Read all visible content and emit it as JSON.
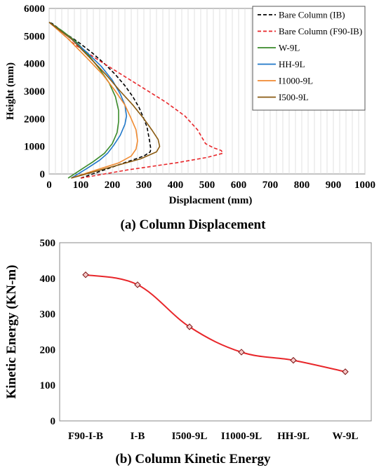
{
  "chart_data": [
    {
      "type": "line",
      "xlabel": "Displacment (mm)",
      "ylabel": "Height (mm)",
      "caption": "(a) Column Displacement",
      "xlim": [
        0,
        1000
      ],
      "ylim": [
        0,
        6000
      ],
      "xticks": [
        0,
        100,
        200,
        300,
        400,
        500,
        600,
        700,
        800,
        900,
        1000
      ],
      "yticks": [
        0,
        1000,
        2000,
        3000,
        4000,
        5000,
        6000
      ],
      "grid": "vertical",
      "legend_position": "top-right",
      "series": [
        {
          "name": "Bare Column (IB)",
          "color": "#000000",
          "dash": "dashed",
          "x": [
            100,
            150,
            200,
            250,
            300,
            320,
            322,
            318,
            310,
            300,
            285,
            265,
            240,
            210,
            175,
            135,
            90,
            50,
            10,
            0
          ],
          "y": [
            -150,
            50,
            250,
            450,
            650,
            800,
            900,
            1200,
            1700,
            2000,
            2400,
            2800,
            3200,
            3600,
            4000,
            4400,
            4800,
            5100,
            5450,
            5500
          ]
        },
        {
          "name": "Bare Column (F90-IB)",
          "color": "#e8262a",
          "dash": "dashed",
          "x": [
            100,
            250,
            400,
            500,
            550,
            545,
            520,
            495,
            485,
            470,
            430,
            370,
            300,
            230,
            160,
            80,
            30,
            0
          ],
          "y": [
            -150,
            150,
            400,
            600,
            750,
            850,
            950,
            1100,
            1300,
            1600,
            2100,
            2600,
            3100,
            3600,
            4100,
            4700,
            5200,
            5500
          ]
        },
        {
          "name": "W-9L",
          "color": "#3a8a2a",
          "dash": "solid",
          "x": [
            60,
            100,
            140,
            175,
            200,
            215,
            220,
            220,
            210,
            190,
            160,
            125,
            85,
            40,
            0
          ],
          "y": [
            -150,
            150,
            450,
            750,
            1100,
            1500,
            1900,
            2300,
            2800,
            3300,
            3800,
            4300,
            4800,
            5200,
            5500
          ]
        },
        {
          "name": "HH-9L",
          "color": "#1f77c8",
          "dash": "solid",
          "x": [
            70,
            120,
            160,
            185,
            205,
            225,
            240,
            245,
            240,
            225,
            200,
            165,
            120,
            70,
            0
          ],
          "y": [
            -150,
            200,
            500,
            750,
            1050,
            1400,
            1800,
            2100,
            2500,
            2900,
            3400,
            3900,
            4400,
            4900,
            5500
          ]
        },
        {
          "name": "I1000-9L",
          "color": "#f08a30",
          "dash": "solid",
          "x": [
            70,
            150,
            220,
            260,
            275,
            280,
            275,
            260,
            240,
            210,
            170,
            120,
            60,
            0
          ],
          "y": [
            -150,
            150,
            400,
            650,
            900,
            1200,
            1600,
            2000,
            2500,
            3000,
            3600,
            4200,
            4900,
            5500
          ]
        },
        {
          "name": "I500-9L",
          "color": "#8a5a10",
          "dash": "solid",
          "x": [
            70,
            180,
            290,
            340,
            350,
            345,
            325,
            300,
            265,
            225,
            180,
            130,
            70,
            0
          ],
          "y": [
            -150,
            200,
            550,
            800,
            1000,
            1250,
            1600,
            2000,
            2500,
            3000,
            3600,
            4200,
            4900,
            5500
          ]
        }
      ]
    },
    {
      "type": "line",
      "ylabel": "Kinetic Energy (KN-m)",
      "caption": "(b) Column Kinetic Energy",
      "categories": [
        "F90-I-B",
        "I-B",
        "I500-9L",
        "I1000-9L",
        "HH-9L",
        "W-9L"
      ],
      "ylim": [
        0,
        500
      ],
      "yticks": [
        0,
        100,
        200,
        300,
        400,
        500
      ],
      "color": "#e8262a",
      "marker": "diamond",
      "values": [
        410,
        382,
        264,
        193,
        170,
        138
      ]
    }
  ]
}
